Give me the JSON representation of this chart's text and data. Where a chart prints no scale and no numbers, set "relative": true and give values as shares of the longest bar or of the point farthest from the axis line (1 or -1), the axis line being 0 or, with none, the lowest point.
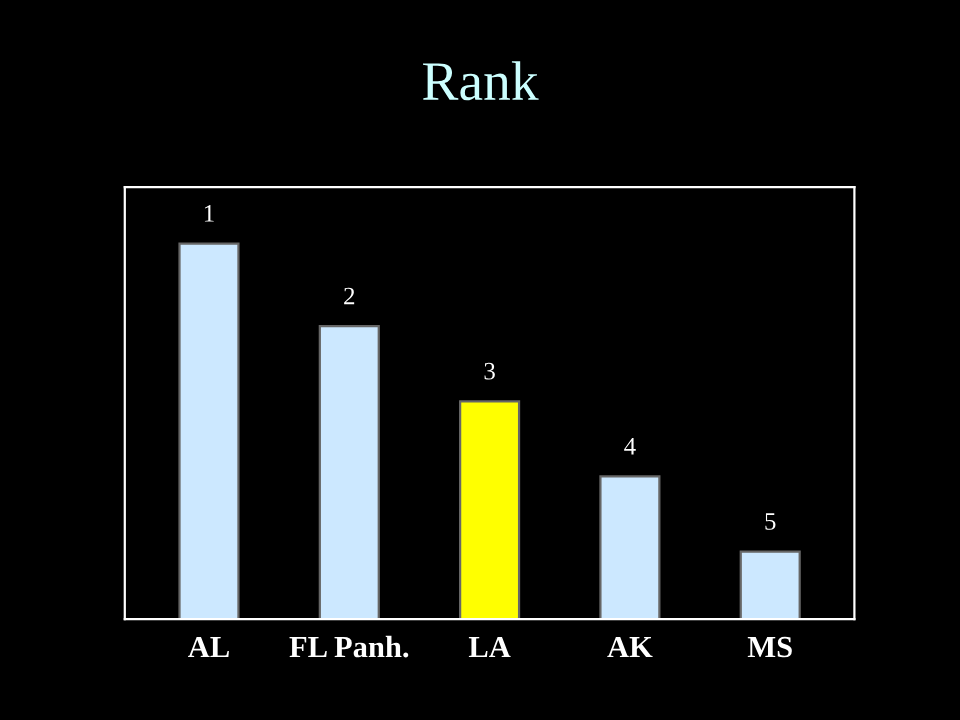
{
  "chart_data": {
    "type": "bar",
    "title": "Rank",
    "relative": true,
    "categories": [
      "AL",
      "FL Panh.",
      "LA",
      "AK",
      "MS"
    ],
    "values": [
      1,
      0.78,
      0.58,
      0.38,
      0.18
    ],
    "colors": [
      "#cce8ff",
      "#cce8ff",
      "#ffff00",
      "#cce8ff",
      "#cce8ff"
    ],
    "annotations": [
      {
        "text": "1",
        "x": "AL",
        "y": 1
      },
      {
        "text": "2",
        "x": "FL Panh.",
        "y": 0.78
      },
      {
        "text": "3",
        "x": "LA",
        "y": 0.58
      },
      {
        "text": "4",
        "x": "AK",
        "y": 0.38
      },
      {
        "text": "5",
        "x": "MS",
        "y": 0.18
      }
    ],
    "grid": false,
    "legend": false
  }
}
